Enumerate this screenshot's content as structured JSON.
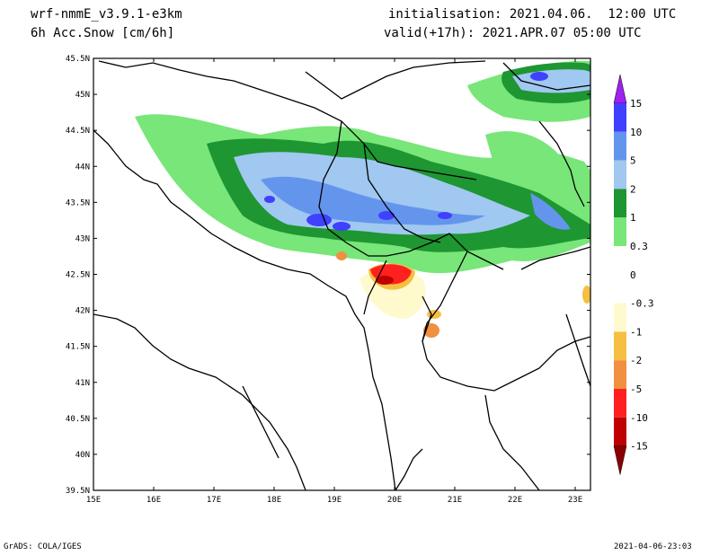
{
  "header": {
    "model": "wrf-nmmE_v3.9.1-e3km",
    "variable": "6h Acc.Snow [cm/6h]",
    "init": "initialisation: 2021.04.06.  12:00 UTC",
    "valid": "valid(+17h): 2021.APR.07 05:00 UTC"
  },
  "footer": {
    "left": "GrADS: COLA/IGES",
    "right": "2021-04-06-23:03"
  },
  "map": {
    "lat_labels": [
      "45.5N",
      "45N",
      "44.5N",
      "44N",
      "43.5N",
      "43N",
      "42.5N",
      "42N",
      "41.5N",
      "41N",
      "40.5N",
      "40N",
      "39.5N"
    ],
    "lon_labels": [
      "15E",
      "16E",
      "17E",
      "18E",
      "19E",
      "20E",
      "21E",
      "22E",
      "23E"
    ]
  },
  "legend": {
    "labels": [
      "15",
      "10",
      "5",
      "2",
      "1",
      "0.3",
      "0",
      "-0.3",
      "-1",
      "-2",
      "-5",
      "-10",
      "-15"
    ],
    "colors": {
      "arrow_top": "#a020f0",
      "c10_15": "#4040ff",
      "c5_10": "#6495ed",
      "c2_5": "#a0c8f0",
      "c1_2": "#1e9632",
      "c03_1": "#78e678",
      "zero": "#ffffff",
      "n03_1": "#fffacd",
      "n1_2": "#f5c042",
      "n2_5": "#f09040",
      "n5_10": "#ff2020",
      "n10_15": "#c00000",
      "arrow_bottom": "#8b0000"
    }
  }
}
